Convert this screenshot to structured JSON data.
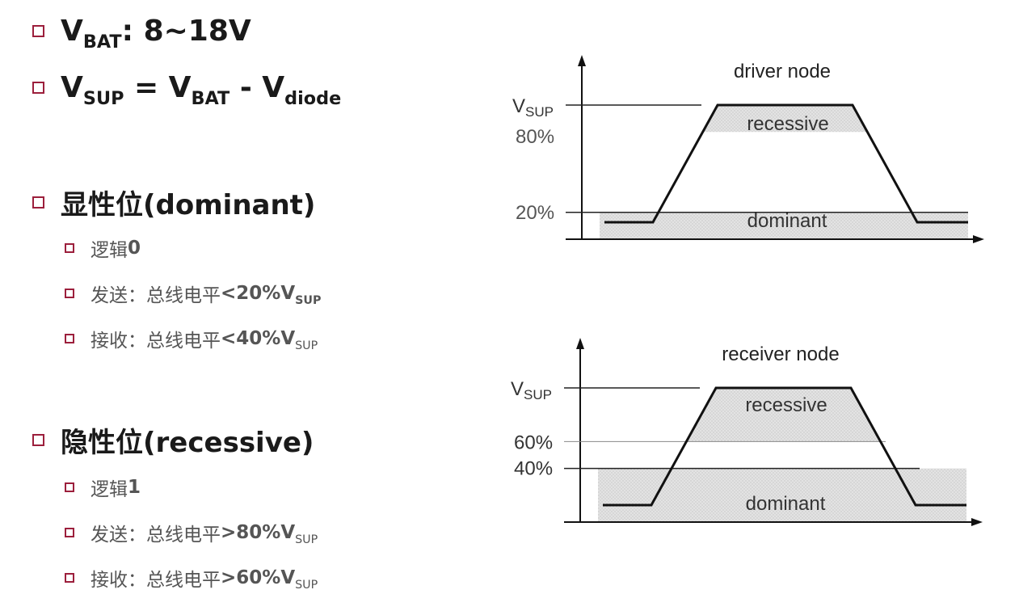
{
  "bullets": {
    "vbat": {
      "v": "V",
      "sub": "BAT",
      "rest": ": 8~18V"
    },
    "vsup": {
      "v1": "V",
      "sub1": "SUP",
      "eq": " = V",
      "sub2": "BAT",
      "minus": " - V",
      "sub3": "diode"
    },
    "dominant": {
      "title": "显性位(dominant)",
      "logic": {
        "label": "逻辑",
        "value": "0"
      },
      "send": {
        "label": "发送：总线电平",
        "value": "<20%V",
        "sub": "SUP"
      },
      "recv": {
        "label": "接收：总线电平",
        "value": "<40%V",
        "sub": "SUP"
      }
    },
    "recessive": {
      "title": "隐性位(recessive)",
      "logic": {
        "label": "逻辑",
        "value": "1"
      },
      "send": {
        "label": "发送：总线电平",
        "value": ">80%V",
        "sub": "SUP"
      },
      "recv": {
        "label": "接收：总线电平",
        "value": ">60%V",
        "sub": "SUP"
      }
    }
  },
  "colors": {
    "bullet_border": "#9c1f3c",
    "shade": "#d9d9d9",
    "text": "#222222"
  },
  "diagrams": {
    "driver": {
      "title": "driver node",
      "vsup_v": "V",
      "vsup_sub": "SUP",
      "upper_label": "80%",
      "upper_value": 0.8,
      "lower_label": "20%",
      "lower_value": 0.2,
      "recessive_label": "recessive",
      "dominant_label": "dominant"
    },
    "receiver": {
      "title": "receiver node",
      "vsup_v": "V",
      "vsup_sub": "SUP",
      "upper_label": "60%",
      "upper_value": 0.6,
      "lower_label": "40%",
      "lower_value": 0.4,
      "recessive_label": "recessive",
      "dominant_label": "dominant"
    }
  }
}
